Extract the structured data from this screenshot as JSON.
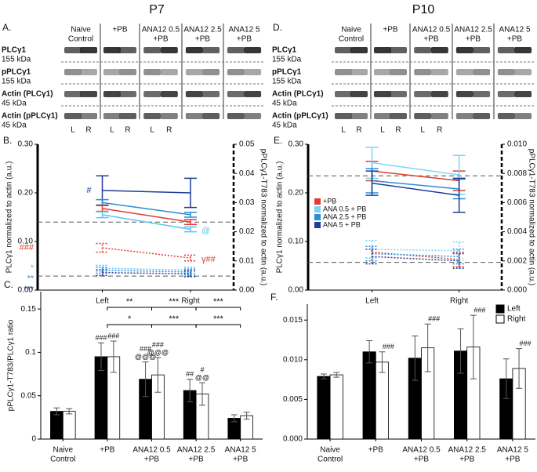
{
  "columns": [
    "P7",
    "P10"
  ],
  "blots": [
    {
      "panel": "A.",
      "groups": [
        [
          "Naive",
          "Control"
        ],
        [
          "+PB"
        ],
        [
          "ANA12 0.5",
          "+PB"
        ],
        [
          "ANA12 2.5",
          "+PB"
        ],
        [
          "ANA12 5",
          "+PB"
        ]
      ],
      "rows": [
        {
          "name": "PLCγ1",
          "size": "155 kDa"
        },
        {
          "name": "pPLCγ1",
          "size": "155 kDa"
        },
        {
          "name": "Actin (PLCγ1)",
          "size": "45 kDa"
        },
        {
          "name": "Actin (pPLCγ1)",
          "size": "45 kDa"
        }
      ],
      "lanes": [
        "L",
        "R",
        "L",
        "R",
        "L",
        "R"
      ]
    },
    {
      "panel": "D.",
      "groups": [
        [
          "Naive",
          "Control"
        ],
        [
          "+PB"
        ],
        [
          "ANA12 0.5",
          "+PB"
        ],
        [
          "ANA12 2.5",
          "+PB"
        ],
        [
          "ANA12 5",
          "+PB"
        ]
      ],
      "rows": [
        {
          "name": "PLCγ1",
          "size": "155 kDa"
        },
        {
          "name": "pPLCγ1",
          "size": "155 kDa"
        },
        {
          "name": "Actin (PLCγ1)",
          "size": "45 kDa"
        },
        {
          "name": "Actin (pPLCγ1)",
          "size": "45 kDa"
        }
      ],
      "lanes": [
        "L",
        "R",
        "L",
        "R",
        "L",
        "R"
      ]
    }
  ],
  "chart_data": [
    {
      "type": "line",
      "panel": "B.",
      "ylabel": "PLCγ1 normalized to actin (a.u.)",
      "y2label": "pPLCγ1-T783 normalized to actin (a.u.)",
      "categories": [
        "Left",
        "Right"
      ],
      "ylim": [
        0,
        0.3
      ],
      "yticks": [
        {
          "value": 0,
          "label": "0.00"
        },
        {
          "value": 0.1,
          "label": "0.10"
        },
        {
          "value": 0.2,
          "label": "0.20"
        },
        {
          "value": 0.3,
          "label": "0.30"
        }
      ],
      "y2lim": [
        0,
        0.05
      ],
      "y2ticks": [
        {
          "value": 0,
          "label": "0.00"
        },
        0.01,
        0.02,
        0.03,
        0.04,
        0.05
      ],
      "reference_lines": [
        {
          "value": 0.14,
          "axis": "y"
        },
        {
          "value": 0.0048,
          "axis": "y2"
        }
      ],
      "series": [
        {
          "color": "#1f3b99",
          "style": "solid",
          "values": [
            0.205,
            0.2
          ],
          "errors": [
            0.03,
            0.03
          ],
          "annotations": [
            "#",
            null
          ]
        },
        {
          "color": "#2a8fd6",
          "style": "solid",
          "values": [
            0.18,
            0.155
          ],
          "errors": [
            0.006,
            0.005
          ],
          "annotations": [
            null,
            null
          ]
        },
        {
          "color": "#e03c31",
          "style": "solid",
          "values": [
            0.168,
            0.14
          ],
          "errors": [
            0.006,
            0.005
          ],
          "annotations": [
            null,
            null
          ]
        },
        {
          "color": "#5bc4ef",
          "style": "solid",
          "values": [
            0.155,
            0.125
          ],
          "errors": [
            0.006,
            0.005
          ],
          "annotations": [
            null,
            "@"
          ]
        },
        {
          "color": "#e03c31",
          "style": "dotted",
          "axis": "y2",
          "values": [
            0.0145,
            0.011
          ],
          "errors": [
            0.0015,
            0.001
          ],
          "annotations": [
            "###",
            "γ##"
          ]
        },
        {
          "color": "#5bc4ef",
          "style": "dotted",
          "axis": "y2",
          "values": [
            0.0075,
            0.0068
          ],
          "errors": [
            0.001,
            0.001
          ],
          "annotations": [
            "*",
            null
          ]
        },
        {
          "color": "#2a8fd6",
          "style": "dotted",
          "axis": "y2",
          "values": [
            0.0068,
            0.0062
          ],
          "errors": [
            0.001,
            0.001
          ],
          "annotations": [
            "**",
            null
          ]
        },
        {
          "color": "#1f3b99",
          "style": "dotted",
          "axis": "y2",
          "values": [
            0.006,
            0.0056
          ],
          "errors": [
            0.001,
            0.001
          ],
          "annotations": [
            "***",
            null
          ]
        }
      ]
    },
    {
      "type": "bar",
      "panel": "C.",
      "ylabel": "pPLCγ1-T783/PLCγ1 ratio",
      "categories": [
        [
          "Naive",
          "Control"
        ],
        [
          "+PB"
        ],
        [
          "ANA12 0.5",
          "+PB"
        ],
        [
          "ANA12 2.5",
          "+PB"
        ],
        [
          "ANA12 5",
          "+PB"
        ]
      ],
      "ylim": [
        0,
        0.17
      ],
      "yticks": [
        0,
        0.05,
        0.1,
        0.15
      ],
      "series": [
        {
          "color": "#000000",
          "values": [
            0.032,
            0.095,
            0.069,
            0.056,
            0.024
          ],
          "errors": [
            0.004,
            0.016,
            0.02,
            0.013,
            0.004
          ],
          "annotations": [
            null,
            [
              "###"
            ],
            [
              "###",
              "@@@"
            ],
            [
              "##"
            ],
            null
          ]
        },
        {
          "color": "#ffffff",
          "values": [
            0.032,
            0.095,
            0.074,
            0.052,
            0.027
          ],
          "errors": [
            0.003,
            0.018,
            0.02,
            0.013,
            0.004
          ],
          "annotations": [
            null,
            [
              "###"
            ],
            [
              "###",
              "@@@"
            ],
            [
              "#",
              "@@"
            ],
            null
          ]
        }
      ],
      "comparisons": [
        {
          "from": 1,
          "to": 2,
          "text": "**",
          "series": 0
        },
        {
          "from": 2,
          "to": 3,
          "text": "***",
          "series": 0
        },
        {
          "from": 3,
          "to": 4,
          "text": "***",
          "series": 0
        },
        {
          "from": 1,
          "to": 2,
          "text": "*",
          "series": 1
        },
        {
          "from": 2,
          "to": 3,
          "text": "***",
          "series": 1
        },
        {
          "from": 3,
          "to": 4,
          "text": "***",
          "series": 1
        }
      ]
    },
    {
      "type": "line",
      "panel": "E.",
      "ylabel": "PLCγ1 normalized to actin (a.u.)",
      "y2label": "pPLCγ1-T783 normalized to actin (a.u.)",
      "categories": [
        "Left",
        "Right"
      ],
      "legend": "center left",
      "ylim": [
        0,
        0.3
      ],
      "yticks": [
        {
          "value": 0,
          "label": "0.00"
        },
        {
          "value": 0.1,
          "label": "0.10"
        },
        {
          "value": 0.2,
          "label": "0.20"
        },
        {
          "value": 0.3,
          "label": "0.30"
        }
      ],
      "y2lim": [
        0,
        0.01
      ],
      "y2ticks": [
        {
          "value": 0,
          "label": "0.000"
        },
        {
          "value": 0.002,
          "label": "0.002"
        },
        {
          "value": 0.004,
          "label": "0.004"
        },
        {
          "value": 0.006,
          "label": "0.006"
        },
        {
          "value": 0.008,
          "label": "0.008"
        },
        {
          "value": 0.01,
          "label": "0.010"
        }
      ],
      "reference_lines": [
        {
          "value": 0.235,
          "axis": "y"
        },
        {
          "value": 0.0019,
          "axis": "y2"
        }
      ],
      "series": [
        {
          "name": "+PB",
          "color": "#e03c31",
          "style": "solid",
          "values": [
            0.245,
            0.225
          ],
          "errors": [
            0.02,
            0.02
          ]
        },
        {
          "name": "ANA 0.5 + PB",
          "color": "#7dd3f5",
          "style": "solid",
          "values": [
            0.262,
            0.237
          ],
          "errors": [
            0.032,
            0.04
          ]
        },
        {
          "name": "ANA 2.5 + PB",
          "color": "#2a8fd6",
          "style": "solid",
          "values": [
            0.225,
            0.208
          ],
          "errors": [
            0.025,
            0.02
          ]
        },
        {
          "name": "ANA 5 + PB",
          "color": "#1d3f98",
          "style": "solid",
          "values": [
            0.22,
            0.195
          ],
          "errors": [
            0.025,
            0.035
          ]
        },
        {
          "color": "#e03c31",
          "style": "dotted",
          "axis": "y2",
          "values": [
            0.0026,
            0.0021
          ],
          "errors": [
            0.0004,
            0.0005
          ]
        },
        {
          "color": "#7dd3f5",
          "style": "dotted",
          "axis": "y2",
          "values": [
            0.0028,
            0.0027
          ],
          "errors": [
            0.0006,
            0.0006
          ]
        },
        {
          "color": "#2a8fd6",
          "style": "dotted",
          "axis": "y2",
          "values": [
            0.0025,
            0.0023
          ],
          "errors": [
            0.0005,
            0.0005
          ]
        },
        {
          "color": "#1d3f98",
          "style": "dotted",
          "axis": "y2",
          "values": [
            0.0023,
            0.002
          ],
          "errors": [
            0.0005,
            0.0005
          ]
        }
      ]
    },
    {
      "type": "bar",
      "panel": "F.",
      "legend": "upper right",
      "categories": [
        [
          "Naive",
          "Control"
        ],
        [
          "+PB"
        ],
        [
          "ANA12 0.5",
          "+PB"
        ],
        [
          "ANA12 2.5",
          "+PB"
        ],
        [
          "ANA12 5",
          "+PB"
        ]
      ],
      "ylim": [
        0,
        0.017
      ],
      "yticks": [
        {
          "value": 0,
          "label": "0.000"
        },
        {
          "value": 0.005,
          "label": "0.005"
        },
        {
          "value": 0.01,
          "label": "0.010"
        },
        {
          "value": 0.015,
          "label": "0.015"
        }
      ],
      "series": [
        {
          "name": "Left",
          "color": "#000000",
          "values": [
            0.0079,
            0.011,
            0.0102,
            0.0111,
            0.0076
          ],
          "errors": [
            0.0003,
            0.0014,
            0.0028,
            0.0028,
            0.0025
          ],
          "annotations": [
            null,
            null,
            null,
            null,
            null
          ]
        },
        {
          "name": "Right",
          "color": "#ffffff",
          "values": [
            0.0081,
            0.0097,
            0.0115,
            0.0116,
            0.0089
          ],
          "errors": [
            0.0003,
            0.0013,
            0.003,
            0.004,
            0.0025
          ],
          "annotations": [
            null,
            [
              "###"
            ],
            [
              "###"
            ],
            [
              "###"
            ],
            [
              "###"
            ]
          ]
        }
      ]
    }
  ]
}
